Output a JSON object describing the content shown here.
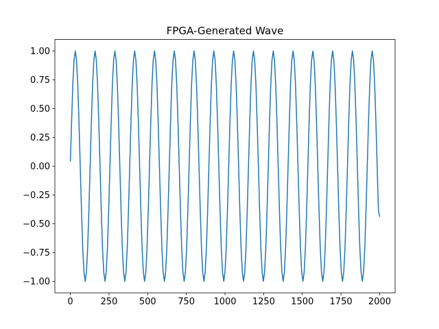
{
  "chart_data": {
    "type": "line",
    "title": "FPGA-Generated Wave",
    "color": "#1f77b4",
    "x": [
      0,
      8,
      16,
      24,
      32,
      40,
      48,
      56,
      64,
      72,
      80,
      88,
      96,
      104,
      112,
      120,
      128,
      136,
      144,
      152,
      160,
      168,
      176,
      184,
      192,
      200,
      208,
      216,
      224,
      232,
      240,
      248,
      256,
      264,
      272,
      280,
      288,
      296,
      304,
      312,
      320,
      328,
      336,
      344,
      352,
      360,
      368,
      376,
      384,
      392,
      400,
      408,
      416,
      424,
      432,
      440,
      448,
      456,
      464,
      472,
      480,
      488,
      496,
      504,
      512,
      520,
      528,
      536,
      544,
      552,
      560,
      568,
      576,
      584,
      592,
      600,
      608,
      616,
      624,
      632,
      640,
      648,
      656,
      664,
      672,
      680,
      688,
      696,
      704,
      712,
      720,
      728,
      736,
      744,
      752,
      760,
      768,
      776,
      784,
      792,
      800,
      808,
      816,
      824,
      832,
      840,
      848,
      856,
      864,
      872,
      880,
      888,
      896,
      904,
      912,
      920,
      928,
      936,
      944,
      952,
      960,
      968,
      976,
      984,
      992,
      1000,
      1008,
      1016,
      1024,
      1032,
      1040,
      1048,
      1056,
      1064,
      1072,
      1080,
      1088,
      1096,
      1104,
      1112,
      1120,
      1128,
      1136,
      1144,
      1152,
      1160,
      1168,
      1176,
      1184,
      1192,
      1200,
      1208,
      1216,
      1224,
      1232,
      1240,
      1248,
      1256,
      1264,
      1272,
      1280,
      1288,
      1296,
      1304,
      1312,
      1320,
      1328,
      1336,
      1344,
      1352,
      1360,
      1368,
      1376,
      1384,
      1392,
      1400,
      1408,
      1416,
      1424,
      1432,
      1440,
      1448,
      1456,
      1464,
      1472,
      1480,
      1488,
      1496,
      1504,
      1512,
      1520,
      1528,
      1536,
      1544,
      1552,
      1560,
      1568,
      1576,
      1584,
      1592,
      1600,
      1608,
      1616,
      1624,
      1632,
      1640,
      1648,
      1656,
      1664,
      1672,
      1680,
      1688,
      1696,
      1704,
      1712,
      1720,
      1728,
      1736,
      1744,
      1752,
      1760,
      1768,
      1776,
      1784,
      1792,
      1800,
      1808,
      1816,
      1824,
      1832,
      1840,
      1848,
      1856,
      1864,
      1872,
      1880,
      1888,
      1896,
      1904,
      1912,
      1920,
      1928,
      1936,
      1944,
      1952,
      1960,
      1968,
      1976,
      1984,
      1992,
      2000
    ],
    "values": [
      0.04,
      0.38,
      0.71,
      0.92,
      1,
      0.92,
      0.71,
      0.38,
      0,
      -0.38,
      -0.71,
      -0.92,
      -1,
      -0.92,
      -0.71,
      -0.38,
      0,
      0.38,
      0.71,
      0.92,
      1,
      0.92,
      0.71,
      0.38,
      0,
      -0.38,
      -0.71,
      -0.92,
      -1,
      -0.92,
      -0.71,
      -0.38,
      0,
      0.38,
      0.71,
      0.92,
      1,
      0.92,
      0.71,
      0.38,
      0,
      -0.38,
      -0.71,
      -0.92,
      -1,
      -0.92,
      -0.71,
      -0.38,
      0,
      0.38,
      0.71,
      0.92,
      1,
      0.92,
      0.71,
      0.38,
      0,
      -0.38,
      -0.71,
      -0.92,
      -1,
      -0.92,
      -0.71,
      -0.38,
      0,
      0.38,
      0.71,
      0.92,
      1,
      0.92,
      0.71,
      0.38,
      0,
      -0.38,
      -0.71,
      -0.92,
      -1,
      -0.92,
      -0.71,
      -0.38,
      0,
      0.38,
      0.71,
      0.92,
      1,
      0.92,
      0.71,
      0.38,
      0,
      -0.38,
      -0.71,
      -0.92,
      -1,
      -0.92,
      -0.71,
      -0.38,
      0,
      0.38,
      0.71,
      0.92,
      1,
      0.92,
      0.71,
      0.38,
      0,
      -0.38,
      -0.71,
      -0.92,
      -1,
      -0.92,
      -0.71,
      -0.38,
      0,
      0.38,
      0.71,
      0.92,
      1,
      0.92,
      0.71,
      0.38,
      0,
      -0.38,
      -0.71,
      -0.92,
      -1,
      -0.92,
      -0.71,
      -0.38,
      0,
      0.38,
      0.71,
      0.92,
      1,
      0.92,
      0.71,
      0.38,
      0,
      -0.38,
      -0.71,
      -0.92,
      -1,
      -0.92,
      -0.71,
      -0.38,
      0,
      0.38,
      0.71,
      0.92,
      1,
      0.92,
      0.71,
      0.38,
      0,
      -0.38,
      -0.71,
      -0.92,
      -1,
      -0.92,
      -0.71,
      -0.38,
      0,
      0.38,
      0.71,
      0.92,
      1,
      0.92,
      0.71,
      0.38,
      0,
      -0.38,
      -0.71,
      -0.92,
      -1,
      -0.92,
      -0.71,
      -0.38,
      0,
      0.38,
      0.71,
      0.92,
      1,
      0.92,
      0.71,
      0.38,
      0,
      -0.38,
      -0.71,
      -0.92,
      -1,
      -0.92,
      -0.71,
      -0.38,
      0,
      0.38,
      0.71,
      0.92,
      1,
      0.92,
      0.71,
      0.38,
      0,
      -0.38,
      -0.71,
      -0.92,
      -1,
      -0.92,
      -0.71,
      -0.38,
      0,
      0.38,
      0.71,
      0.92,
      1,
      0.92,
      0.71,
      0.38,
      0,
      -0.38,
      -0.71,
      -0.92,
      -1,
      -0.92,
      -0.71,
      -0.38,
      0,
      0.38,
      0.71,
      0.92,
      1,
      0.92,
      0.71,
      0.38,
      0,
      -0.38,
      -0.71,
      -0.92,
      -1,
      -0.92,
      -0.71,
      -0.38,
      0,
      0.38,
      0.71,
      0.92,
      1,
      0.92,
      0.71,
      0.38,
      0,
      -0.38,
      -0.44
    ],
    "xlim": [
      -100,
      2100
    ],
    "xticks": [
      0,
      250,
      500,
      750,
      1000,
      1250,
      1500,
      1750,
      2000
    ],
    "ylim": [
      -1.1,
      1.1
    ],
    "yticks": [
      {
        "value": -1,
        "label": "−1.00"
      },
      {
        "value": -0.75,
        "label": "−0.75"
      },
      {
        "value": -0.5,
        "label": "−0.50"
      },
      {
        "value": -0.25,
        "label": "−0.25"
      },
      {
        "value": 0,
        "label": "0.00"
      },
      0.25,
      {
        "value": 0.5,
        "label": "0.50"
      },
      0.75,
      {
        "value": 1,
        "label": "1.00"
      }
    ]
  }
}
